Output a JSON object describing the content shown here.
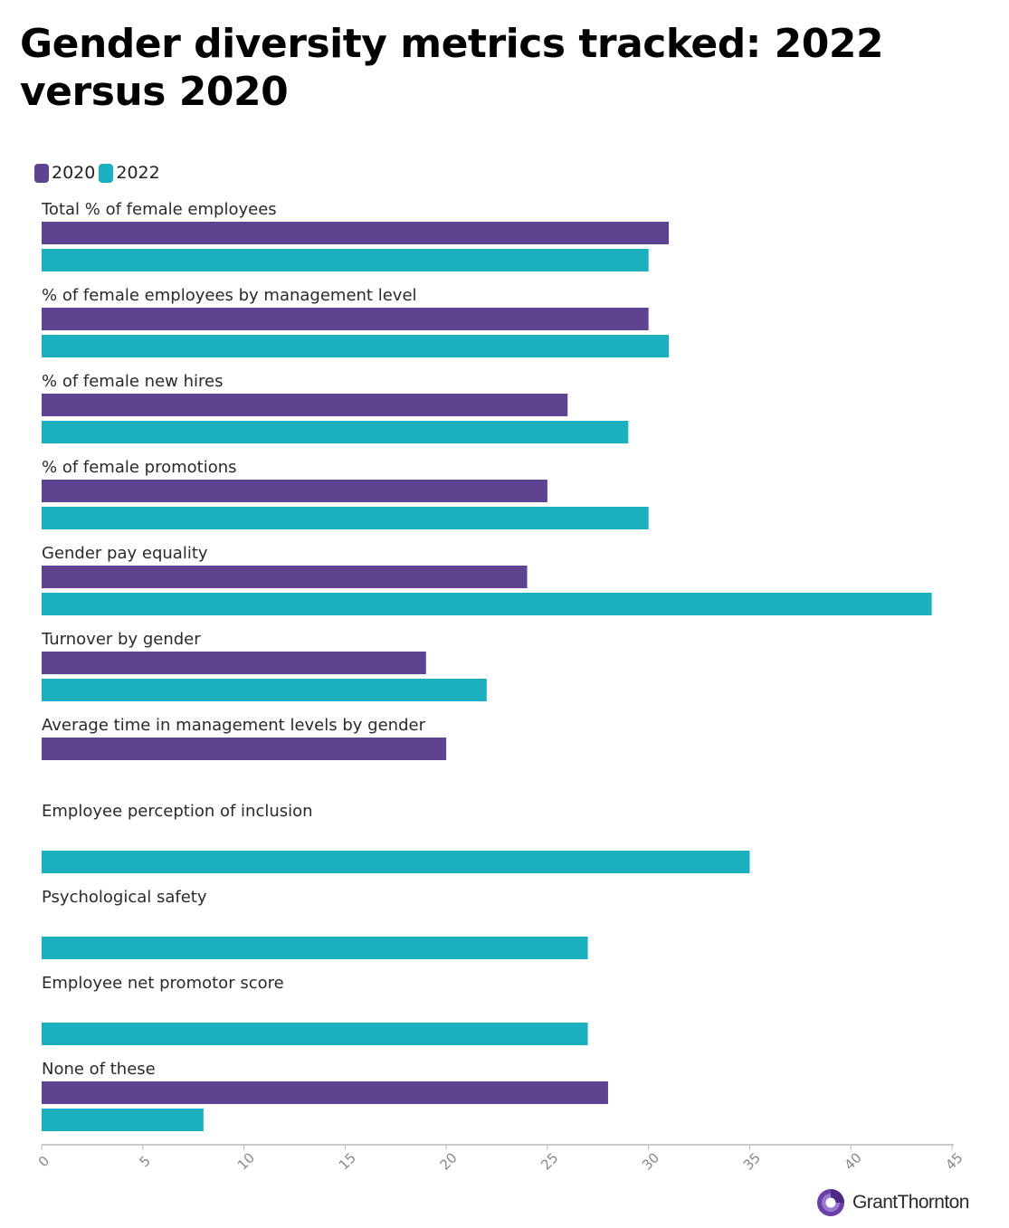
{
  "title": "Gender diversity metrics tracked: 2022 versus 2020",
  "legend": [
    {
      "label": "2020",
      "color": "#5f4290"
    },
    {
      "label": "2022",
      "color": "#1bb0bd"
    }
  ],
  "logo": {
    "text": "GrantThornton",
    "icon": "grant-thornton-logo-icon"
  },
  "chart_data": {
    "type": "bar",
    "orientation": "horizontal",
    "categories": [
      "Total % of female employees",
      "% of female employees by management level",
      "% of female new hires",
      "% of female promotions",
      "Gender pay equality",
      "Turnover by gender",
      "Average time in management levels by gender",
      "Employee perception of inclusion",
      "Psychological safety",
      "Employee net promotor score",
      "None of these"
    ],
    "series": [
      {
        "name": "2020",
        "color": "#5f4290",
        "values": [
          31,
          30,
          26,
          25,
          24,
          19,
          20,
          null,
          null,
          null,
          28
        ]
      },
      {
        "name": "2022",
        "color": "#1bb0bd",
        "values": [
          30,
          31,
          29,
          30,
          44,
          22,
          null,
          35,
          27,
          27,
          8
        ]
      }
    ],
    "xlim": [
      0,
      45
    ],
    "xticks": [
      "0",
      "5",
      "10",
      "15",
      "20",
      "25",
      "30",
      "35",
      "40",
      "45"
    ],
    "grid": false,
    "legend_position": "top-left"
  }
}
